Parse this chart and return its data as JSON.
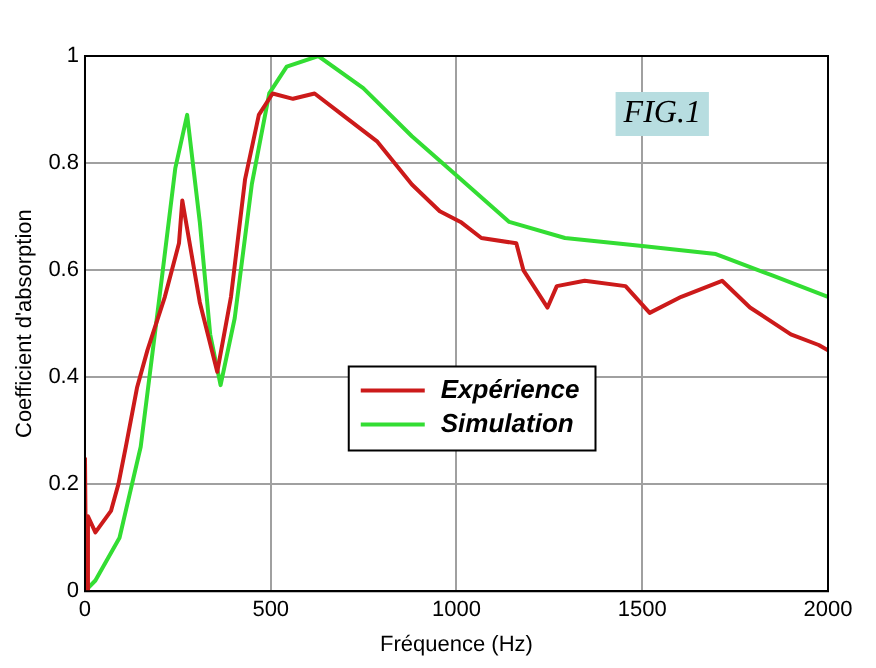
{
  "chart_data": {
    "type": "line",
    "xlabel": "Fréquence (Hz)",
    "ylabel": "Coefficient d'absorption",
    "annotations": [
      "FIG.1"
    ],
    "xlim": [
      0,
      2000
    ],
    "xticks": [
      0,
      500,
      1000,
      1500,
      2000
    ],
    "ylim": [
      0,
      1
    ],
    "yticks": [
      0,
      0.2,
      0.4,
      0.6,
      0.8,
      1
    ],
    "grid": true,
    "legend": "right",
    "marker": "none",
    "line_style": "solid",
    "series": [
      {
        "name": "Expérience",
        "color": "#cc1a1a",
        "x": [
          0,
          3,
          8,
          28,
          70,
          90,
          110,
          140,
          168,
          215,
          253,
          262,
          309,
          356,
          393,
          431,
          468,
          505,
          560,
          618,
          693,
          787,
          880,
          955,
          1011,
          1067,
          1161,
          1180,
          1245,
          1270,
          1345,
          1455,
          1520,
          1605,
          1715,
          1790,
          1900,
          1975,
          2000
        ],
        "values": [
          0.25,
          0,
          0.14,
          0.11,
          0.15,
          0.2,
          0.27,
          0.38,
          0.45,
          0.55,
          0.65,
          0.73,
          0.54,
          0.41,
          0.55,
          0.77,
          0.89,
          0.93,
          0.92,
          0.93,
          0.89,
          0.84,
          0.76,
          0.71,
          0.69,
          0.66,
          0.65,
          0.6,
          0.53,
          0.57,
          0.58,
          0.57,
          0.52,
          0.55,
          0.58,
          0.53,
          0.48,
          0.46,
          0.45
        ]
      },
      {
        "name": "Simulation",
        "color": "#33dd33",
        "x": [
          0,
          28,
          93,
          150,
          206,
          243,
          275,
          309,
          337,
          365,
          403,
          449,
          496,
          543,
          628,
          749,
          880,
          1011,
          1142,
          1292,
          1500,
          1698,
          1850,
          2000
        ],
        "values": [
          0,
          0.02,
          0.1,
          0.27,
          0.58,
          0.79,
          0.89,
          0.69,
          0.48,
          0.385,
          0.51,
          0.76,
          0.93,
          0.98,
          1,
          0.94,
          0.85,
          0.77,
          0.69,
          0.66,
          0.645,
          0.63,
          0.59,
          0.55
        ]
      }
    ]
  }
}
